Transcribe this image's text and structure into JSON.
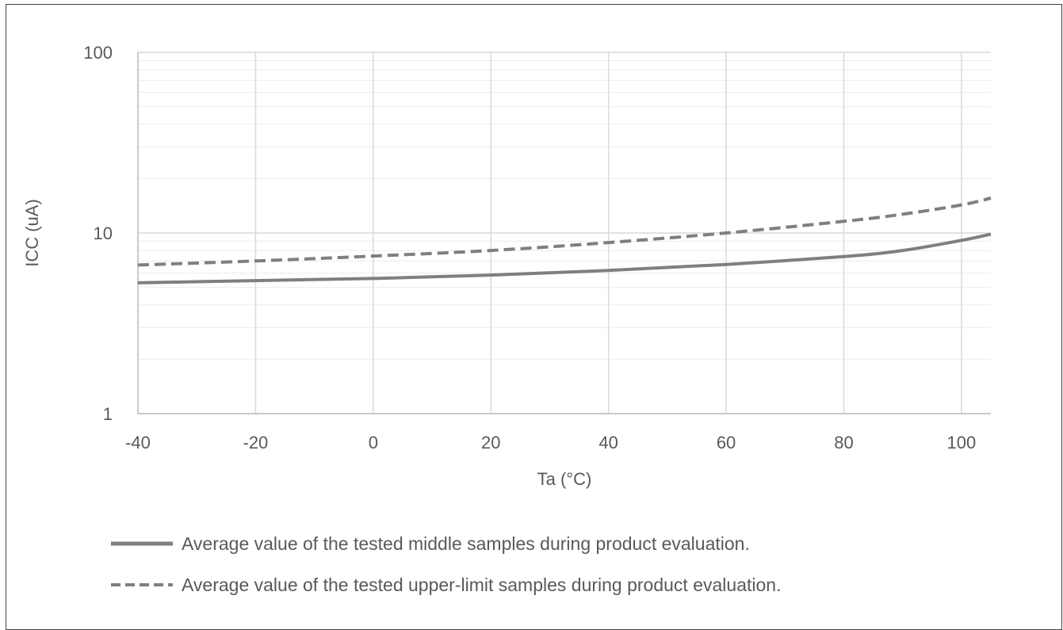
{
  "chart_data": {
    "type": "line",
    "title": "",
    "xlabel": "Ta (°C)",
    "ylabel": "ICC (uA)",
    "xlim": [
      -40,
      105
    ],
    "ylim": [
      1,
      100
    ],
    "y_scale": "log",
    "grid": true,
    "x_ticks": [
      "-40",
      "-20",
      "0",
      "20",
      "40",
      "60",
      "80",
      "100"
    ],
    "x_tick_values": [
      -40,
      -20,
      0,
      20,
      40,
      60,
      80,
      100
    ],
    "y_ticks": [
      "1",
      "10",
      "100"
    ],
    "y_tick_values": [
      1,
      10,
      100
    ],
    "legend_position": "bottom",
    "series": [
      {
        "name": "Average value of the tested middle samples during product evaluation.",
        "style": "solid",
        "color": "#7f7f7f",
        "x": [
          -40,
          -20,
          0,
          20,
          40,
          60,
          80,
          90,
          100,
          105
        ],
        "y": [
          5.3,
          5.45,
          5.6,
          5.85,
          6.2,
          6.7,
          7.4,
          8.0,
          9.1,
          9.85
        ]
      },
      {
        "name": "Average value of the tested upper-limit samples during product evaluation.",
        "style": "dashed",
        "color": "#7f7f7f",
        "x": [
          -40,
          -20,
          0,
          20,
          40,
          60,
          80,
          90,
          100,
          105
        ],
        "y": [
          6.65,
          7.0,
          7.45,
          8.0,
          8.85,
          10.0,
          11.6,
          12.7,
          14.3,
          15.6
        ]
      }
    ]
  }
}
